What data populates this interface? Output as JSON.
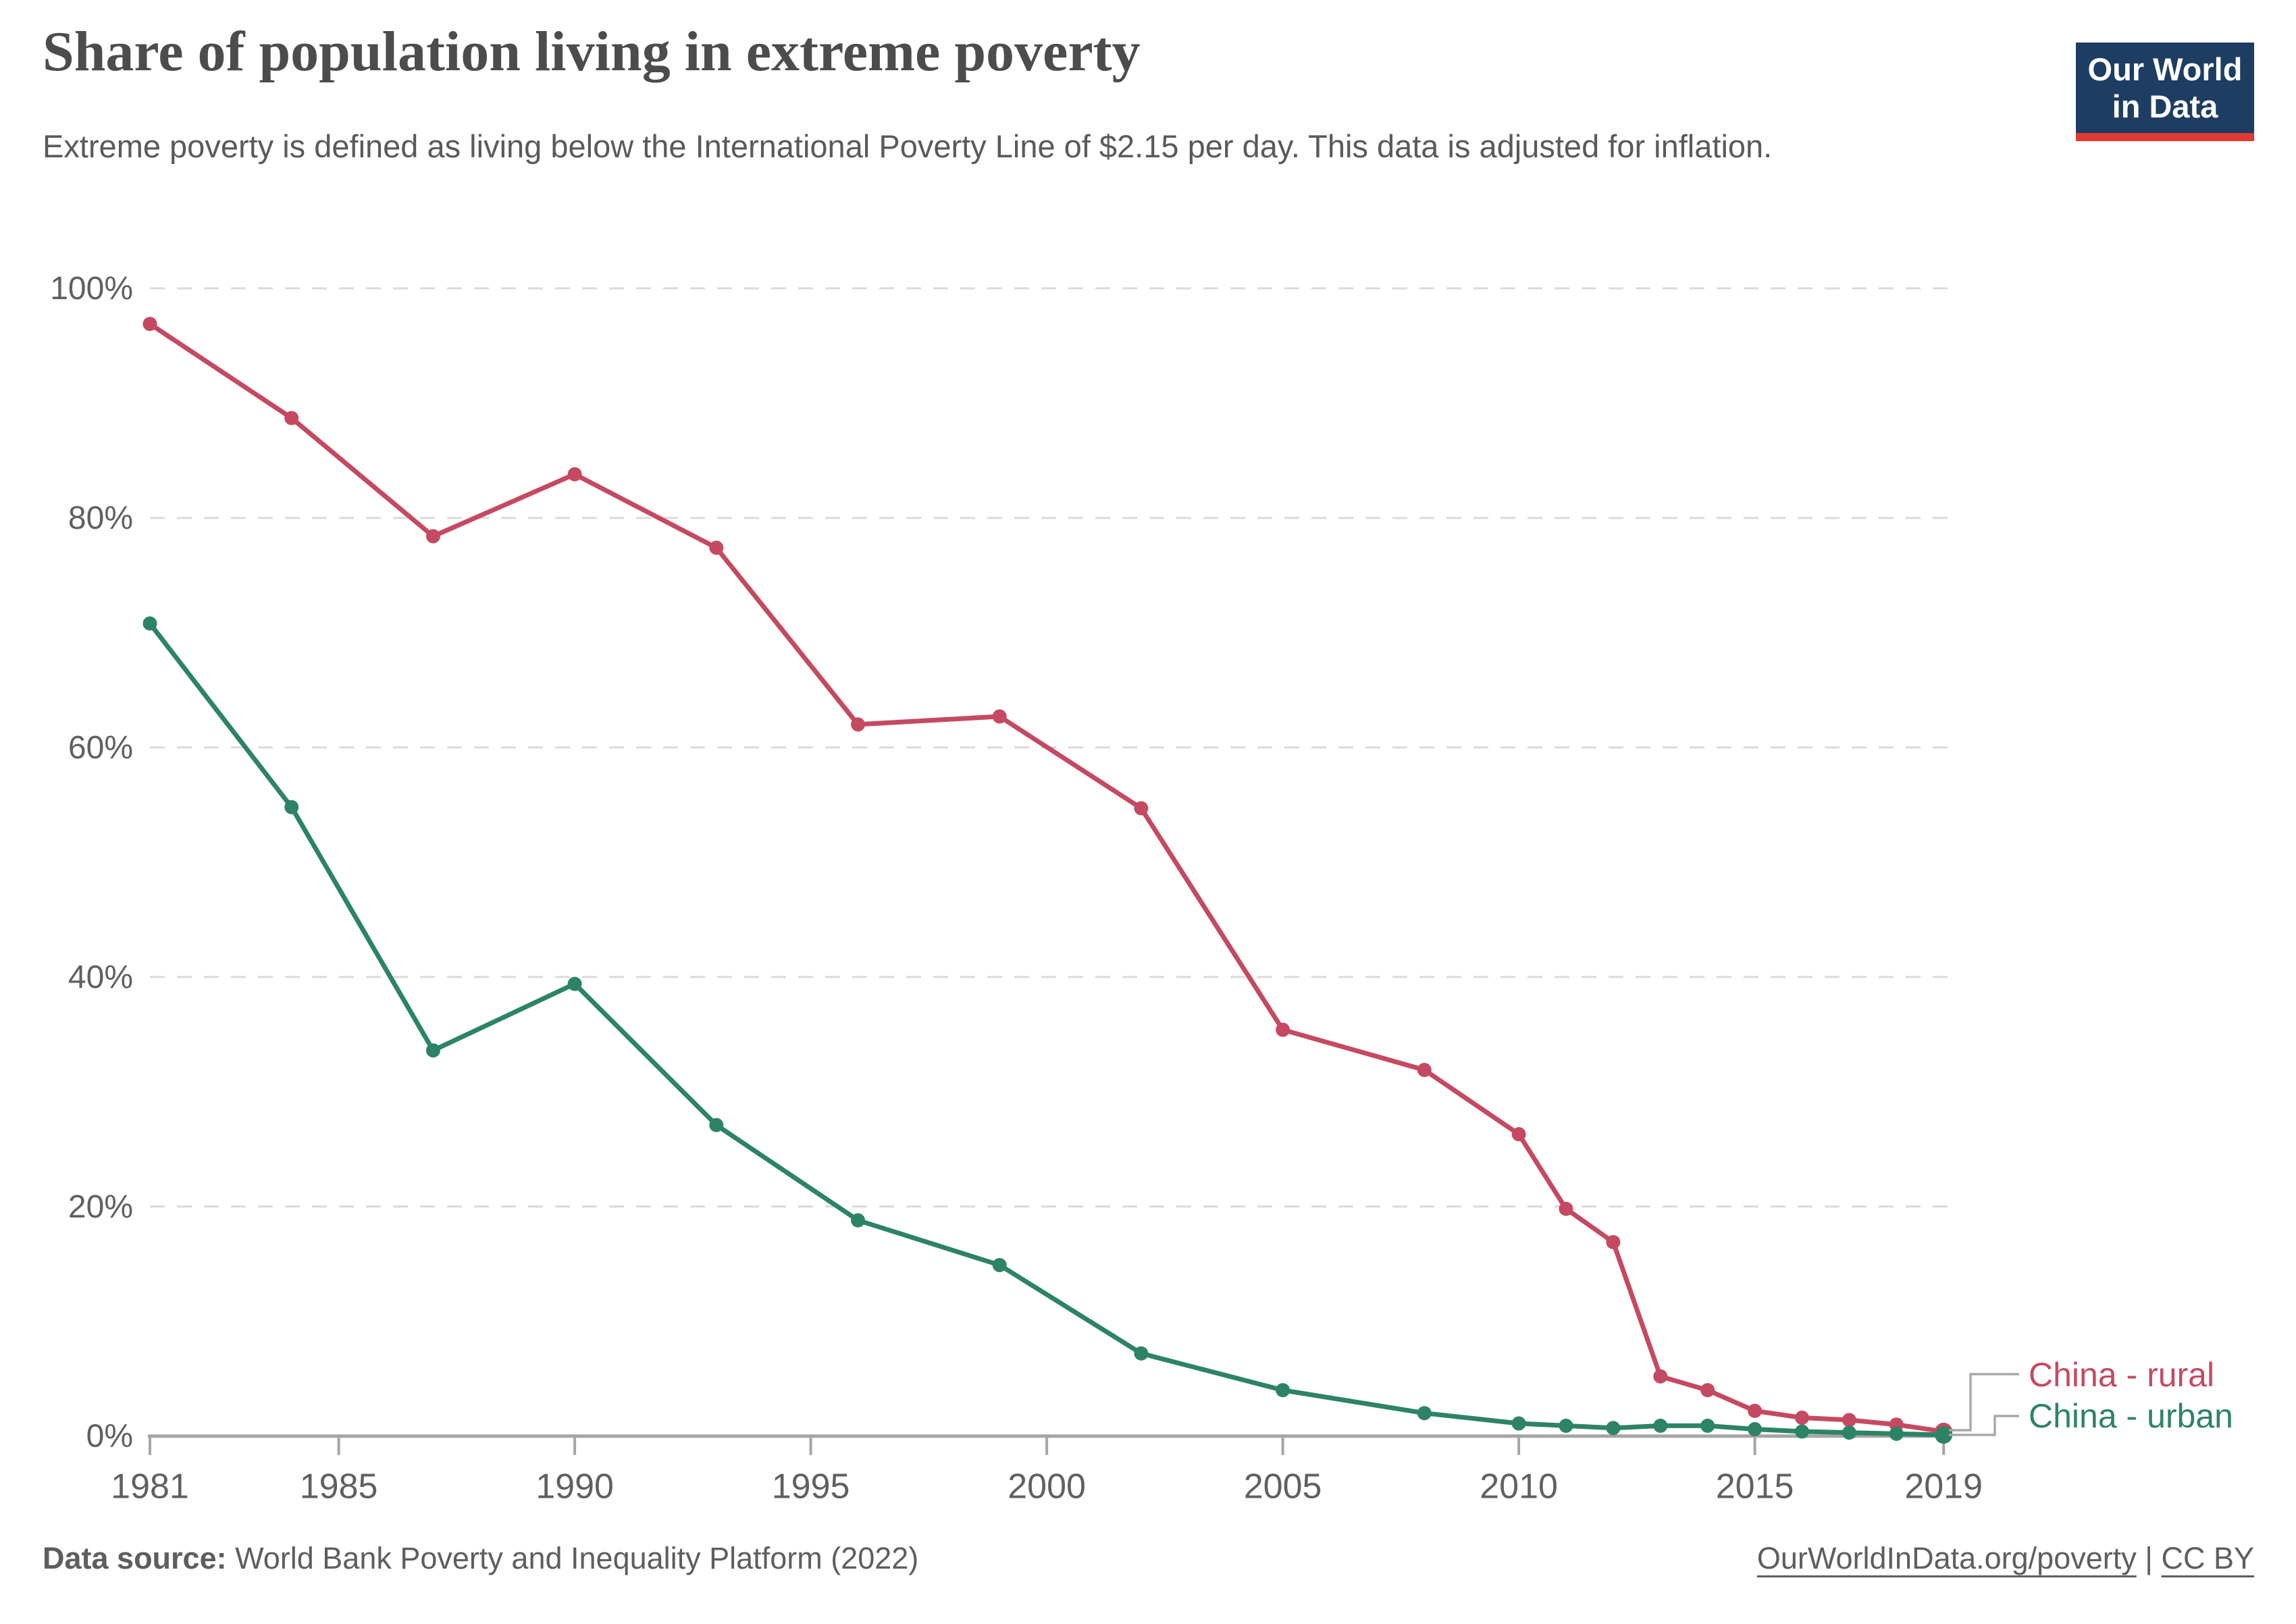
{
  "header": {
    "title": "Share of population living in extreme poverty",
    "subtitle": "Extreme poverty is defined as living below the International Poverty Line of $2.15 per day. This data is adjusted for inflation."
  },
  "logo": {
    "line1": "Our World",
    "line2": "in Data",
    "background": "#1d3d63",
    "bar_color": "#e03931"
  },
  "chart_data": {
    "type": "line",
    "title": "Share of population living in extreme poverty",
    "x": [
      1981,
      1984,
      1987,
      1990,
      1993,
      1996,
      1999,
      2002,
      2005,
      2008,
      2010,
      2011,
      2012,
      2013,
      2014,
      2015,
      2016,
      2017,
      2018,
      2019
    ],
    "series": [
      {
        "name": "China - rural",
        "color": "#c54a61",
        "values": [
          96.9,
          88.7,
          78.4,
          83.8,
          77.4,
          62.0,
          62.7,
          54.7,
          35.4,
          31.9,
          26.3,
          19.8,
          16.9,
          5.2,
          4.0,
          2.2,
          1.6,
          1.4,
          1.0,
          0.4
        ]
      },
      {
        "name": "China - urban",
        "color": "#2c8465",
        "values": [
          70.8,
          54.8,
          33.6,
          39.4,
          27.1,
          18.8,
          14.9,
          7.2,
          4.0,
          2.0,
          1.1,
          0.9,
          0.7,
          0.9,
          0.9,
          0.6,
          0.4,
          0.3,
          0.2,
          0.1
        ]
      }
    ],
    "x_ticks": [
      "1981",
      "1985",
      "1990",
      "1995",
      "2000",
      "2005",
      "2010",
      "2015",
      "2019"
    ],
    "y_ticks": [
      0,
      20,
      40,
      60,
      80,
      100
    ],
    "y_tick_suffix": "%",
    "xlim": [
      1981,
      2019
    ],
    "ylim": [
      0,
      100
    ],
    "grid": true,
    "legend_position": "right",
    "colors": {
      "gridline": "#dadada",
      "axis": "#a5a5a5",
      "tick_label": "#606060",
      "legend_connector": "#a8a8a8"
    }
  },
  "footer": {
    "source_label": "Data source:",
    "source_text": " World Bank Poverty and Inequality Platform (2022)",
    "link": "OurWorldInData.org/poverty",
    "separator": " | ",
    "license": "CC BY"
  }
}
